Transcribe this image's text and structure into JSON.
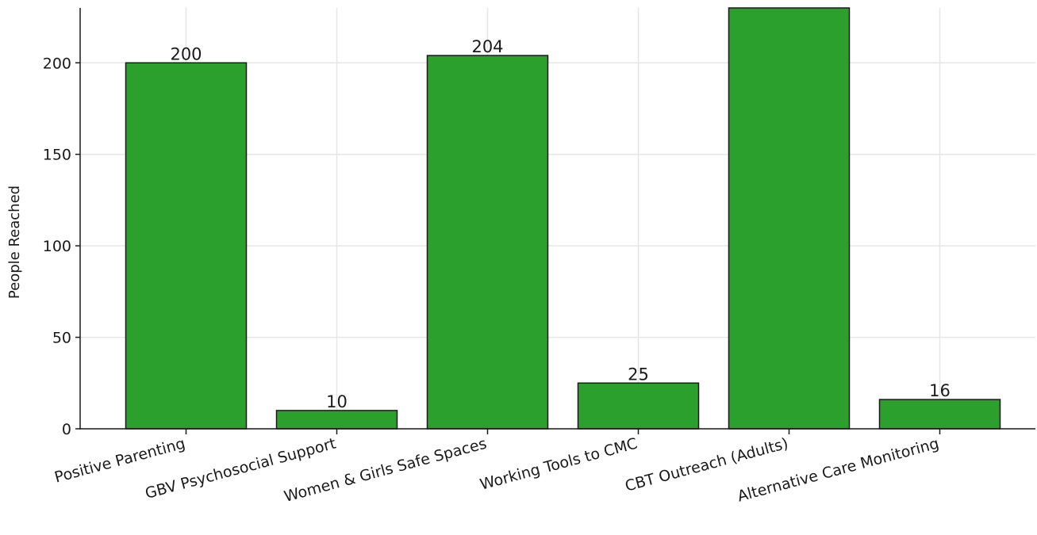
{
  "chart_data": {
    "type": "bar",
    "title": "",
    "xlabel": "",
    "ylabel": "People Reached",
    "categories": [
      "Positive Parenting",
      "GBV Psychosocial Support",
      "Women & Girls Safe Spaces",
      "Working Tools to CMC",
      "CBT Outreach (Adults)",
      "Alternative Care Monitoring"
    ],
    "values": [
      200,
      10,
      204,
      25,
      230,
      16
    ],
    "data_labels": [
      "200",
      "10",
      "204",
      "25",
      "",
      "16"
    ],
    "ylim": [
      0,
      230
    ],
    "yticks": [
      0,
      50,
      100,
      150,
      200
    ],
    "grid": true,
    "legend": "none",
    "bar_color": "#2ca02c",
    "bar_edge_color": "#1a1a1a",
    "grid_color": "#e6e6e6",
    "axis_color": "#1a1a1a"
  }
}
